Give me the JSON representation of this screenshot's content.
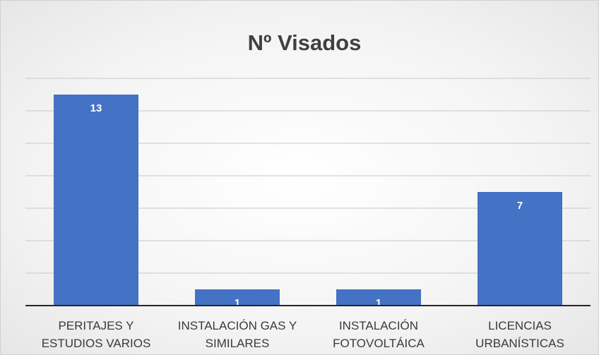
{
  "chart_data": {
    "type": "bar",
    "title": "Nº Visados",
    "categories": [
      "PERITAJES Y ESTUDIOS VARIOS",
      "INSTALACIÓN GAS Y SIMILARES",
      "INSTALACIÓN FOTOVOLTÁICA",
      "LICENCIAS URBANÍSTICAS"
    ],
    "values": [
      13,
      1,
      1,
      7
    ],
    "color": "#4472c4",
    "ylim": [
      0,
      14
    ],
    "yticks": [
      0,
      2,
      4,
      6,
      8,
      10,
      12,
      14
    ],
    "grid": true
  }
}
